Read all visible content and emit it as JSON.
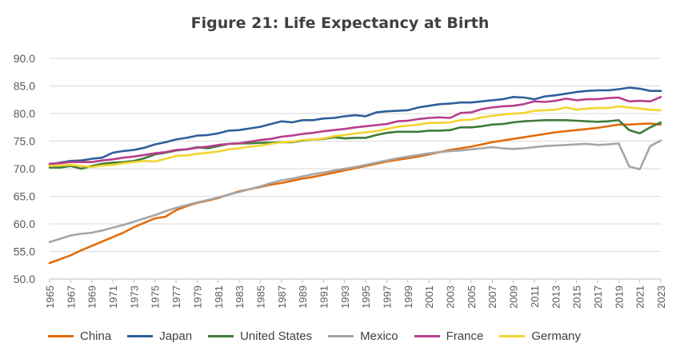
{
  "chart_data": {
    "type": "line",
    "title": "Figure 21:  Life Expectancy at Birth",
    "xlabel": "",
    "ylabel": "",
    "ylim": [
      50,
      90
    ],
    "yticks": [
      "90.0",
      "85.0",
      "80.0",
      "75.0",
      "70.0",
      "65.0",
      "60.0",
      "55.0",
      "50.0"
    ],
    "x": [
      1965,
      1966,
      1967,
      1968,
      1969,
      1970,
      1971,
      1972,
      1973,
      1974,
      1975,
      1976,
      1977,
      1978,
      1979,
      1980,
      1981,
      1982,
      1983,
      1984,
      1985,
      1986,
      1987,
      1988,
      1989,
      1990,
      1991,
      1992,
      1993,
      1994,
      1995,
      1996,
      1997,
      1998,
      1999,
      2000,
      2001,
      2002,
      2003,
      2004,
      2005,
      2006,
      2007,
      2008,
      2009,
      2010,
      2011,
      2012,
      2013,
      2014,
      2015,
      2016,
      2017,
      2018,
      2019,
      2020,
      2021,
      2022,
      2023
    ],
    "xtick_labels": [
      "1965",
      "1967",
      "1969",
      "1971",
      "1973",
      "1975",
      "1977",
      "1979",
      "1981",
      "1983",
      "1985",
      "1987",
      "1989",
      "1991",
      "1993",
      "1995",
      "1997",
      "1999",
      "2001",
      "2003",
      "2005",
      "2007",
      "2009",
      "2011",
      "2013",
      "2015",
      "2017",
      "2019",
      "2021",
      "2023"
    ],
    "grid": "horizontal",
    "legend_position": "bottom",
    "series": [
      {
        "name": "China",
        "color": "#E36C0A",
        "values": [
          52.9,
          53.6,
          54.3,
          55.2,
          56.0,
          56.8,
          57.6,
          58.4,
          59.4,
          60.2,
          61.0,
          61.3,
          62.5,
          63.2,
          63.8,
          64.2,
          64.7,
          65.3,
          65.9,
          66.3,
          66.7,
          67.1,
          67.4,
          67.8,
          68.2,
          68.5,
          68.9,
          69.3,
          69.7,
          70.1,
          70.5,
          70.9,
          71.3,
          71.6,
          71.9,
          72.2,
          72.6,
          73.0,
          73.4,
          73.7,
          74.0,
          74.4,
          74.8,
          75.1,
          75.4,
          75.7,
          76.0,
          76.3,
          76.6,
          76.8,
          77.0,
          77.2,
          77.4,
          77.7,
          78.0,
          78.0,
          78.1,
          78.2,
          78.0
        ]
      },
      {
        "name": "Japan",
        "color": "#2E5F99",
        "values": [
          70.8,
          71.1,
          71.4,
          71.5,
          71.8,
          72.0,
          72.9,
          73.2,
          73.4,
          73.8,
          74.4,
          74.8,
          75.3,
          75.6,
          76.0,
          76.1,
          76.4,
          76.9,
          77.0,
          77.3,
          77.6,
          78.1,
          78.6,
          78.4,
          78.8,
          78.8,
          79.1,
          79.2,
          79.5,
          79.7,
          79.5,
          80.2,
          80.4,
          80.5,
          80.6,
          81.1,
          81.4,
          81.7,
          81.8,
          82.0,
          82.0,
          82.2,
          82.4,
          82.6,
          83.0,
          82.9,
          82.6,
          83.1,
          83.3,
          83.6,
          83.9,
          84.1,
          84.2,
          84.2,
          84.4,
          84.7,
          84.5,
          84.1,
          84.1
        ]
      },
      {
        "name": "United States",
        "color": "#3E7B3A",
        "values": [
          70.2,
          70.2,
          70.5,
          70.0,
          70.5,
          70.9,
          71.1,
          71.2,
          71.4,
          71.9,
          72.6,
          72.9,
          73.3,
          73.5,
          73.9,
          73.7,
          74.1,
          74.5,
          74.6,
          74.6,
          74.7,
          74.7,
          74.8,
          74.8,
          75.1,
          75.3,
          75.4,
          75.7,
          75.5,
          75.6,
          75.6,
          76.1,
          76.5,
          76.7,
          76.7,
          76.7,
          76.9,
          76.9,
          77.0,
          77.5,
          77.5,
          77.7,
          78.0,
          78.1,
          78.4,
          78.6,
          78.7,
          78.8,
          78.8,
          78.8,
          78.7,
          78.6,
          78.5,
          78.6,
          78.8,
          77.0,
          76.4,
          77.5,
          78.4
        ]
      },
      {
        "name": "Mexico",
        "color": "#A6A6A6",
        "values": [
          56.7,
          57.3,
          57.9,
          58.2,
          58.4,
          58.8,
          59.3,
          59.8,
          60.4,
          61.0,
          61.6,
          62.3,
          62.9,
          63.4,
          63.9,
          64.3,
          64.8,
          65.3,
          65.8,
          66.3,
          66.8,
          67.4,
          67.9,
          68.2,
          68.6,
          69.0,
          69.3,
          69.7,
          70.0,
          70.3,
          70.7,
          71.1,
          71.5,
          71.9,
          72.2,
          72.5,
          72.8,
          73.0,
          73.2,
          73.3,
          73.5,
          73.7,
          73.9,
          73.7,
          73.6,
          73.7,
          73.9,
          74.1,
          74.2,
          74.3,
          74.4,
          74.5,
          74.3,
          74.4,
          74.6,
          70.4,
          69.9,
          74.1,
          75.1
        ]
      },
      {
        "name": "France",
        "color": "#B83D8B",
        "values": [
          70.9,
          71.0,
          71.2,
          71.2,
          71.2,
          71.5,
          71.7,
          72.0,
          72.2,
          72.5,
          72.8,
          73.0,
          73.4,
          73.5,
          73.8,
          74.0,
          74.3,
          74.5,
          74.6,
          74.9,
          75.2,
          75.4,
          75.8,
          76.0,
          76.3,
          76.5,
          76.8,
          77.0,
          77.2,
          77.5,
          77.7,
          77.9,
          78.1,
          78.6,
          78.7,
          79.0,
          79.2,
          79.3,
          79.2,
          80.1,
          80.2,
          80.8,
          81.1,
          81.3,
          81.4,
          81.7,
          82.2,
          82.1,
          82.3,
          82.7,
          82.4,
          82.6,
          82.6,
          82.8,
          82.9,
          82.2,
          82.3,
          82.2,
          83.0
        ]
      },
      {
        "name": "Germany",
        "color": "#F2D52F",
        "values": [
          70.5,
          70.6,
          70.7,
          70.5,
          70.3,
          70.6,
          70.7,
          71.0,
          71.2,
          71.4,
          71.3,
          71.8,
          72.3,
          72.4,
          72.7,
          72.9,
          73.1,
          73.5,
          73.7,
          74.0,
          74.2,
          74.5,
          74.8,
          74.9,
          75.2,
          75.3,
          75.5,
          75.9,
          76.1,
          76.4,
          76.6,
          76.8,
          77.2,
          77.6,
          77.8,
          78.0,
          78.3,
          78.3,
          78.4,
          78.8,
          78.9,
          79.3,
          79.6,
          79.8,
          80.0,
          80.1,
          80.5,
          80.6,
          80.7,
          81.1,
          80.7,
          80.9,
          81.0,
          81.0,
          81.3,
          81.1,
          80.9,
          80.7,
          80.6
        ]
      }
    ]
  }
}
